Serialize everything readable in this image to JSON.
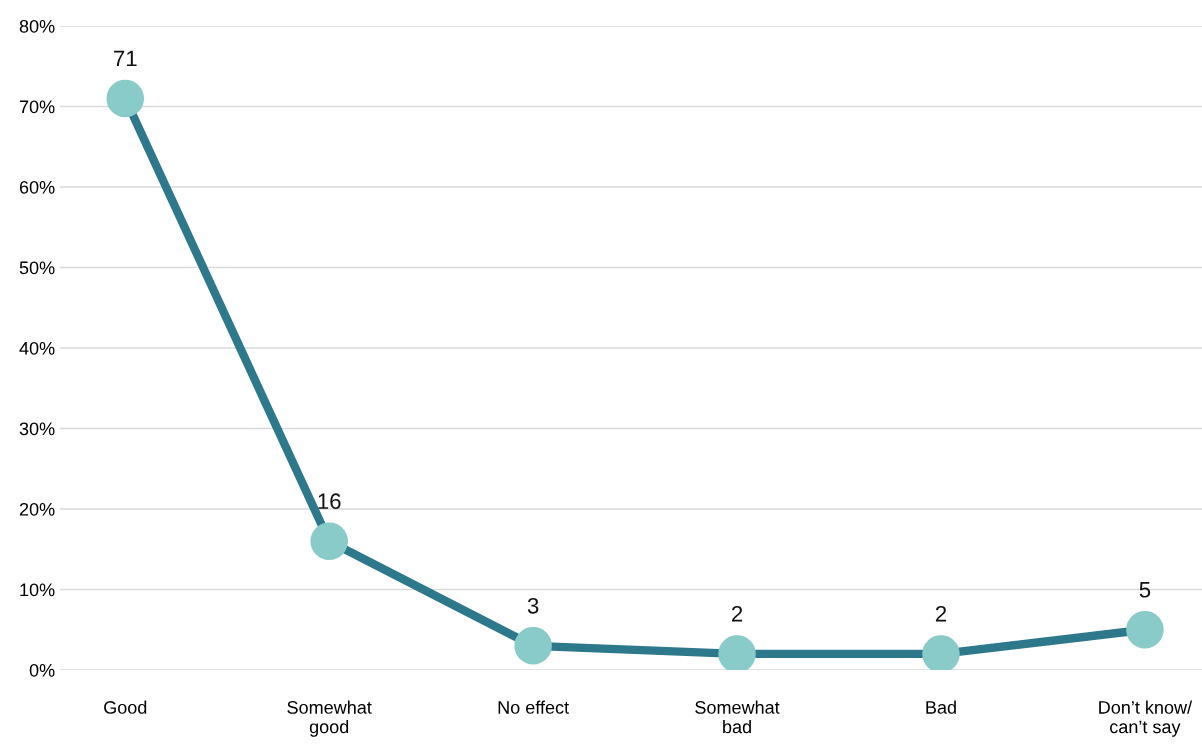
{
  "chart_data": {
    "type": "line",
    "categories": [
      "Good",
      "Somewhat\ngood",
      "No effect",
      "Somewhat\nbad",
      "Bad",
      "Don’t know/\ncan’t say"
    ],
    "series": [
      {
        "color": "#2e788c",
        "values": [
          71,
          16,
          3,
          2,
          2,
          5
        ]
      }
    ],
    "marker": "circle",
    "line_style": "solid",
    "data_labels": true,
    "ylim": [
      0,
      80
    ],
    "yticks": [
      {
        "value": 0,
        "label": "0%"
      },
      {
        "value": 10,
        "label": "10%"
      },
      {
        "value": 20,
        "label": "20%"
      },
      {
        "value": 30,
        "label": "30%"
      },
      {
        "value": 40,
        "label": "40%"
      },
      {
        "value": 50,
        "label": "50%"
      },
      {
        "value": 60,
        "label": "60%"
      },
      {
        "value": 70,
        "label": "70%"
      },
      {
        "value": 80,
        "label": "80%"
      }
    ],
    "grid": "y",
    "legend": false
  }
}
